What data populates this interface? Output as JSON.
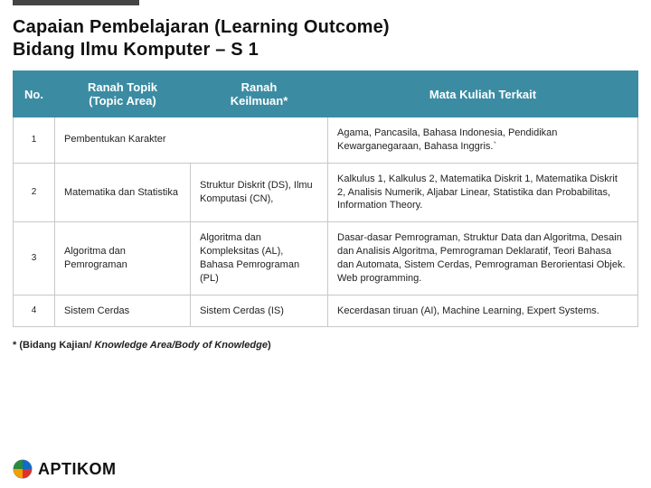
{
  "title": {
    "line1": "Capaian Pembelajaran (Learning Outcome)",
    "line2": "Bidang Ilmu Komputer – S 1"
  },
  "table": {
    "header_bg": "#3b8ca3",
    "header_fg": "#ffffff",
    "border_color": "#c8c8c8",
    "columns": {
      "no": {
        "label": "No."
      },
      "topic": {
        "line1": "Ranah  Topik",
        "line2": "(Topic Area)"
      },
      "keilmuan": {
        "line1": "Ranah",
        "line2": "Keilmuan*"
      },
      "mk": {
        "label": "Mata Kuliah Terkait"
      }
    },
    "rows": [
      {
        "no": "1",
        "topic": "Pembentukan Karakter",
        "keilmuan": "",
        "mk": "Agama, Pancasila, Bahasa Indonesia, Pendidikan Kewarganegaraan, Bahasa Inggris.`",
        "merge_topic_keilmuan": true
      },
      {
        "no": "2",
        "topic": "Matematika dan Statistika",
        "keilmuan": "Struktur Diskrit (DS), Ilmu Komputasi (CN),",
        "mk": "Kalkulus 1, Kalkulus 2, Matematika Diskrit 1, Matematika Diskrit 2, Analisis Numerik, Aljabar Linear, Statistika dan Probabilitas, Information Theory."
      },
      {
        "no": "3",
        "topic": "Algoritma dan Pemrograman",
        "keilmuan": "Algoritma dan Kompleksitas (AL), Bahasa Pemrograman (PL)",
        "mk": "Dasar-dasar Pemrograman, Struktur Data dan Algoritma, Desain dan Analisis Algoritma, Pemrograman Deklaratif, Teori Bahasa dan Automata, Sistem Cerdas, Pemrograman Berorientasi Objek. Web programming."
      },
      {
        "no": "4",
        "topic": "Sistem Cerdas",
        "keilmuan": "Sistem Cerdas (IS)",
        "mk": "Kecerdasan tiruan (AI), Machine Learning, Expert Systems."
      }
    ]
  },
  "footnote": {
    "prefix": "* (Bidang Kajian/ ",
    "italic": "Knowledge Area/Body of Knowledge",
    "suffix": ")"
  },
  "logo": {
    "text": "APTIKOM",
    "mark_colors": {
      "a": "#0f6cc9",
      "b": "#e03131",
      "c": "#f59f00",
      "d": "#2b8a3e"
    }
  }
}
